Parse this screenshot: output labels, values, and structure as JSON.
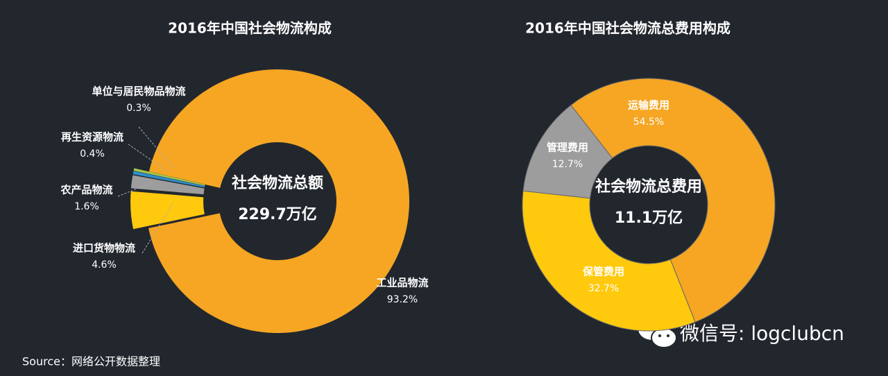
{
  "chart_data": [
    {
      "type": "donut",
      "title": "2016年中国社会物流构成",
      "center_label": "社会物流总额",
      "center_value": "229.7万亿",
      "categories": [
        "工业品物流",
        "进口货物物流",
        "农产品物流",
        "再生资源物流",
        "单位与居民物品物流"
      ],
      "values": [
        93.2,
        4.6,
        1.6,
        0.4,
        0.3
      ],
      "value_labels": [
        "93.2%",
        "4.6%",
        "1.6%",
        "0.4%",
        "0.3%"
      ],
      "colors": [
        "#f6a623",
        "#ffc90e",
        "#9d9d9d",
        "#2e8fc8",
        "#a8c84b"
      ]
    },
    {
      "type": "donut",
      "title": "2016年中国社会物流总费用构成",
      "center_label": "社会物流总费用",
      "center_value": "11.1万亿",
      "categories": [
        "运输费用",
        "保管费用",
        "管理费用"
      ],
      "values": [
        54.5,
        32.7,
        12.7
      ],
      "value_labels": [
        "54.5%",
        "32.7%",
        "12.7%"
      ],
      "colors": [
        "#f6a623",
        "#ffc90e",
        "#9d9d9d"
      ]
    }
  ],
  "source": "Source：网络公开数据整理",
  "watermark": "微信号: logclubcn"
}
